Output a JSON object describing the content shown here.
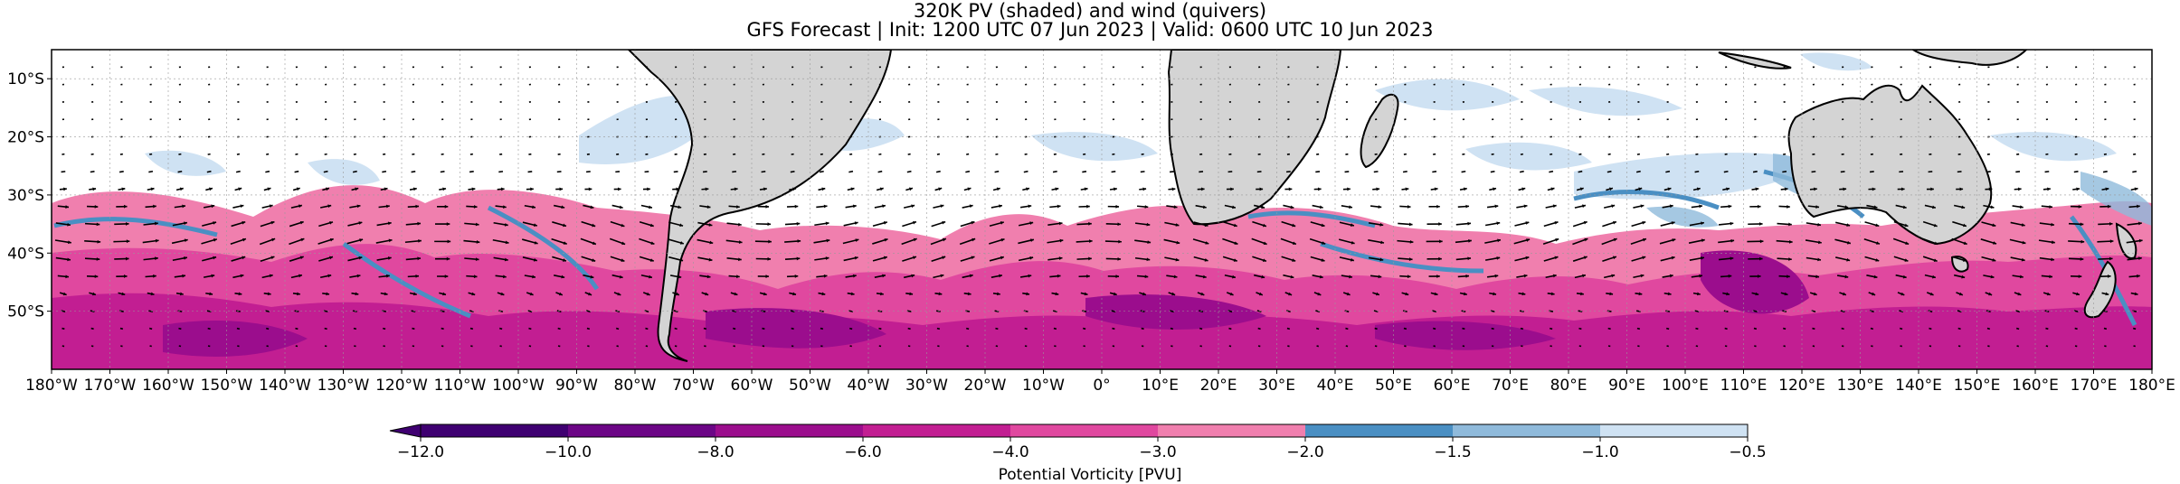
{
  "title": {
    "line1": "320K PV (shaded) and wind (quivers)",
    "line2": "GFS Forecast | Init: 1200 UTC 07 Jun 2023 | Valid: 0600 UTC 10 Jun 2023"
  },
  "map": {
    "lon_range": [
      -180,
      180
    ],
    "lat_range": [
      -60,
      -5
    ],
    "lon_ticks": [
      "180°W",
      "170°W",
      "160°W",
      "150°W",
      "140°W",
      "130°W",
      "120°W",
      "110°W",
      "100°W",
      "90°W",
      "80°W",
      "70°W",
      "60°W",
      "50°W",
      "40°W",
      "30°W",
      "20°W",
      "10°W",
      "0°",
      "10°E",
      "20°E",
      "30°E",
      "40°E",
      "50°E",
      "60°E",
      "70°E",
      "80°E",
      "90°E",
      "100°E",
      "110°E",
      "120°E",
      "130°E",
      "140°E",
      "150°E",
      "160°E",
      "170°E",
      "180°E"
    ],
    "lat_ticks": [
      {
        "lat": -10,
        "label": "10°S"
      },
      {
        "lat": -20,
        "label": "20°S"
      },
      {
        "lat": -30,
        "label": "30°S"
      },
      {
        "lat": -40,
        "label": "40°S"
      },
      {
        "lat": -50,
        "label": "50°S"
      }
    ],
    "land_color": "#d4d4d4",
    "gridlines": true
  },
  "colorbar": {
    "ticks": [
      "−12.0",
      "−10.0",
      "−8.0",
      "−6.0",
      "−4.0",
      "−3.0",
      "−2.0",
      "−1.5",
      "−1.0",
      "−0.5"
    ],
    "colors": [
      "#3f0071",
      "#6c0686",
      "#9b0d8d",
      "#c21e92",
      "#e0489f",
      "#f07fae",
      "#4a8fc3",
      "#8fbadb",
      "#cfe2f3"
    ],
    "extend": "min",
    "label": "Potential Vorticity [PVU]"
  }
}
